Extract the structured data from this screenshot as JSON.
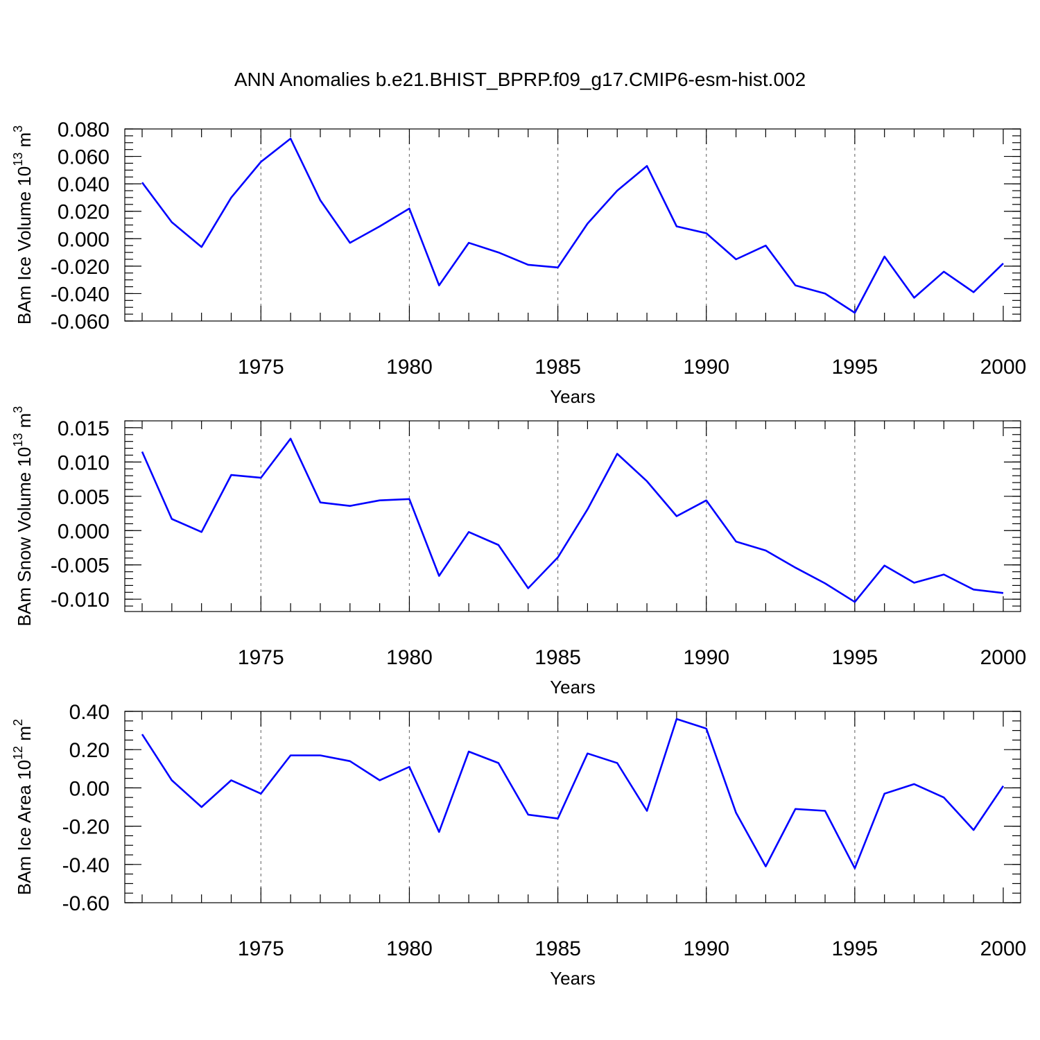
{
  "figure": {
    "title": "ANN Anomalies b.e21.BHIST_BPRP.f09_g17.CMIP6-esm-hist.002",
    "line_color": "#0000ff"
  },
  "chart_data": [
    {
      "type": "line",
      "ylabel_main": "BAm Ice Volume 10",
      "ylabel_exp": "13",
      "ylabel_unit": " m",
      "ylabel_unit_exp": "3",
      "xlabel": "Years",
      "xlim": [
        1971,
        2000
      ],
      "ylim": [
        -0.06,
        0.08
      ],
      "yticks": [
        0.08,
        0.06,
        0.04,
        0.02,
        0.0,
        -0.02,
        -0.04,
        -0.06
      ],
      "ytick_labels": [
        "0.080",
        "0.060",
        "0.040",
        "0.020",
        "0.000",
        "-0.020",
        "-0.040",
        "-0.060"
      ],
      "yminor_step": 0.005,
      "xticks": [
        1975,
        1980,
        1985,
        1990,
        1995,
        2000
      ],
      "xtick_labels": [
        "1975",
        "1980",
        "1985",
        "1990",
        "1995",
        "2000"
      ],
      "x": [
        1971,
        1972,
        1973,
        1974,
        1975,
        1976,
        1977,
        1978,
        1979,
        1980,
        1981,
        1982,
        1983,
        1984,
        1985,
        1986,
        1987,
        1988,
        1989,
        1990,
        1991,
        1992,
        1993,
        1994,
        1995,
        1996,
        1997,
        1998,
        1999,
        2000
      ],
      "series": [
        {
          "name": "BAm Ice Volume",
          "values": [
            0.041,
            0.012,
            -0.006,
            0.03,
            0.056,
            0.073,
            0.028,
            -0.003,
            0.009,
            0.022,
            -0.034,
            -0.003,
            -0.01,
            -0.019,
            -0.021,
            0.011,
            0.035,
            0.053,
            0.009,
            0.004,
            -0.015,
            -0.005,
            -0.034,
            -0.04,
            -0.054,
            -0.013,
            -0.043,
            -0.024,
            -0.039,
            -0.018
          ]
        }
      ]
    },
    {
      "type": "line",
      "ylabel_main": "BAm Snow Volume 10",
      "ylabel_exp": "13",
      "ylabel_unit": " m",
      "ylabel_unit_exp": "3",
      "xlabel": "Years",
      "xlim": [
        1971,
        2000
      ],
      "ylim": [
        -0.0118,
        0.016
      ],
      "yticks": [
        0.015,
        0.01,
        0.005,
        0.0,
        -0.005,
        -0.01
      ],
      "ytick_labels": [
        "0.015",
        "0.010",
        "0.005",
        "0.000",
        "-0.005",
        "-0.010"
      ],
      "yminor_step": 0.001,
      "xticks": [
        1975,
        1980,
        1985,
        1990,
        1995,
        2000
      ],
      "xtick_labels": [
        "1975",
        "1980",
        "1985",
        "1990",
        "1995",
        "2000"
      ],
      "x": [
        1971,
        1972,
        1973,
        1974,
        1975,
        1976,
        1977,
        1978,
        1979,
        1980,
        1981,
        1982,
        1983,
        1984,
        1985,
        1986,
        1987,
        1988,
        1989,
        1990,
        1991,
        1992,
        1993,
        1994,
        1995,
        1996,
        1997,
        1998,
        1999,
        2000
      ],
      "series": [
        {
          "name": "BAm Snow Volume",
          "values": [
            0.0115,
            0.0017,
            -0.0002,
            0.0081,
            0.0077,
            0.0134,
            0.0041,
            0.0036,
            0.0044,
            0.0046,
            -0.0066,
            -0.0002,
            -0.0021,
            -0.0084,
            -0.0039,
            0.0031,
            0.0112,
            0.0072,
            0.0021,
            0.0044,
            -0.0016,
            -0.0029,
            -0.0054,
            -0.0077,
            -0.0104,
            -0.0051,
            -0.0076,
            -0.0064,
            -0.0086,
            -0.0091
          ]
        }
      ]
    },
    {
      "type": "line",
      "ylabel_main": "BAm Ice Area 10",
      "ylabel_exp": "12",
      "ylabel_unit": " m",
      "ylabel_unit_exp": "2",
      "xlabel": "Years",
      "xlim": [
        1971,
        2000
      ],
      "ylim": [
        -0.6,
        0.4
      ],
      "yticks": [
        0.4,
        0.2,
        0.0,
        -0.2,
        -0.4,
        -0.6
      ],
      "ytick_labels": [
        "0.40",
        "0.20",
        "0.00",
        "-0.20",
        "-0.40",
        "-0.60"
      ],
      "yminor_step": 0.05,
      "xticks": [
        1975,
        1980,
        1985,
        1990,
        1995,
        2000
      ],
      "xtick_labels": [
        "1975",
        "1980",
        "1985",
        "1990",
        "1995",
        "2000"
      ],
      "x": [
        1971,
        1972,
        1973,
        1974,
        1975,
        1976,
        1977,
        1978,
        1979,
        1980,
        1981,
        1982,
        1983,
        1984,
        1985,
        1986,
        1987,
        1988,
        1989,
        1990,
        1991,
        1992,
        1993,
        1994,
        1995,
        1996,
        1997,
        1998,
        1999,
        2000
      ],
      "series": [
        {
          "name": "BAm Ice Area",
          "values": [
            0.28,
            0.04,
            -0.1,
            0.04,
            -0.03,
            0.17,
            0.17,
            0.14,
            0.04,
            0.11,
            -0.23,
            0.19,
            0.13,
            -0.14,
            -0.16,
            0.18,
            0.13,
            -0.12,
            0.36,
            0.31,
            -0.13,
            -0.41,
            -0.11,
            -0.12,
            -0.42,
            -0.03,
            0.02,
            -0.05,
            -0.22,
            0.01
          ]
        }
      ]
    }
  ]
}
